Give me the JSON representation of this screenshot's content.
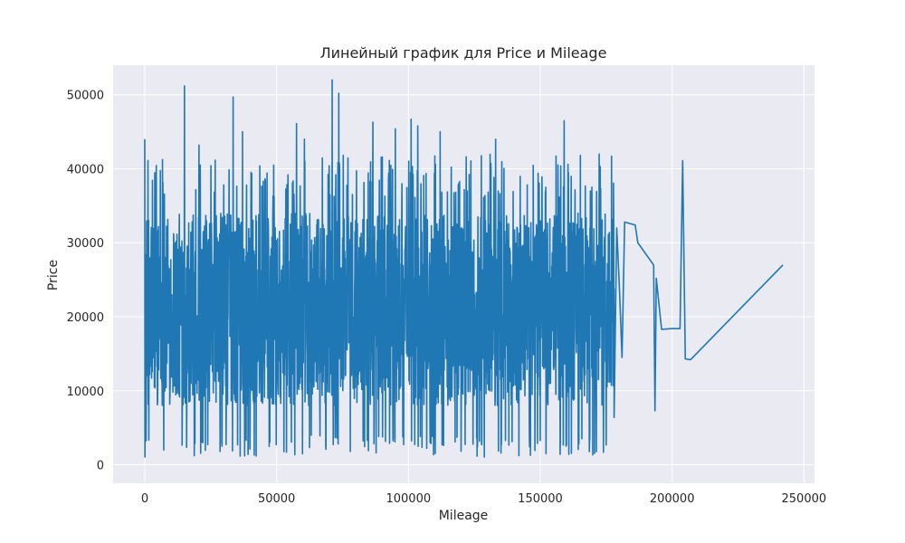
{
  "chart_data": {
    "type": "line",
    "title": "Линейный график для Price и Mileage",
    "xlabel": "Mileage",
    "ylabel": "Price",
    "xlim": [
      -12000,
      254000
    ],
    "ylim": [
      -2500,
      54000
    ],
    "x_ticks": [
      0,
      50000,
      100000,
      150000,
      200000,
      250000
    ],
    "y_ticks": [
      0,
      10000,
      20000,
      30000,
      40000,
      50000
    ],
    "grid": true,
    "legend": "none",
    "colors": {
      "line": "#1f77b4",
      "plot_bg": "#eaeaf2",
      "grid": "#ffffff"
    },
    "series": [
      {
        "dense_region": {
          "x_range": [
            0,
            178000
          ],
          "y_range": [
            1000,
            52000
          ],
          "points": 2200,
          "mean": 19500
        },
        "x": [
          178000,
          179000,
          180000,
          181000,
          182000,
          184000,
          186000,
          187000,
          193000,
          193500,
          194000,
          196000,
          200000,
          201000,
          203000,
          204000,
          205000,
          207000,
          242000
        ],
        "y": [
          6400,
          32000,
          24000,
          14500,
          32800,
          32600,
          32400,
          30000,
          27000,
          7300,
          25200,
          18300,
          18400,
          18400,
          18400,
          41100,
          14300,
          14200,
          27000
        ]
      }
    ]
  }
}
